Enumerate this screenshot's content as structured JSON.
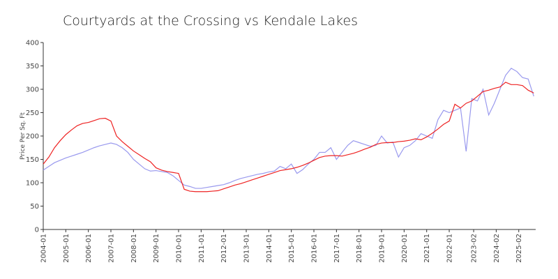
{
  "chart_data": {
    "type": "line",
    "title": "Courtyards at the Crossing vs Kendale Lakes",
    "y_label": "Price Per Sq. Ft",
    "x": [
      "2004-01",
      "2004-04",
      "2004-07",
      "2004-10",
      "2005-01",
      "2005-04",
      "2005-07",
      "2005-10",
      "2006-01",
      "2006-04",
      "2006-07",
      "2006-10",
      "2007-01",
      "2007-04",
      "2007-07",
      "2007-10",
      "2008-01",
      "2008-04",
      "2008-07",
      "2008-10",
      "2009-01",
      "2009-04",
      "2009-07",
      "2009-10",
      "2010-01",
      "2010-04",
      "2010-07",
      "2010-10",
      "2011-01",
      "2011-04",
      "2011-07",
      "2011-10",
      "2012-01",
      "2012-04",
      "2012-07",
      "2012-10",
      "2013-01",
      "2013-04",
      "2013-07",
      "2013-10",
      "2014-01",
      "2014-04",
      "2014-07",
      "2014-10",
      "2015-01",
      "2015-04",
      "2015-07",
      "2015-10",
      "2016-01",
      "2016-04",
      "2016-07",
      "2016-10",
      "2017-01",
      "2017-04",
      "2017-07",
      "2017-10",
      "2018-01",
      "2018-04",
      "2018-07",
      "2018-10",
      "2019-01",
      "2019-04",
      "2019-07",
      "2019-10",
      "2020-01",
      "2020-04",
      "2020-07",
      "2020-10",
      "2021-01",
      "2021-04",
      "2021-07",
      "2021-10",
      "2022-01",
      "2022-04",
      "2022-07",
      "2022-10",
      "2023-01",
      "2023-04",
      "2023-07",
      "2023-10",
      "2024-01",
      "2024-04",
      "2024-07",
      "2024-10",
      "2025-01",
      "2025-04",
      "2025-07",
      "2025-10"
    ],
    "series": [
      {
        "color": "#9999ee",
        "values": [
          127,
          135,
          143,
          148,
          153,
          157,
          161,
          165,
          170,
          175,
          179,
          182,
          185,
          182,
          175,
          165,
          150,
          140,
          130,
          125,
          126,
          124,
          122,
          115,
          105,
          95,
          92,
          88,
          88,
          90,
          92,
          94,
          96,
          100,
          105,
          109,
          112,
          115,
          118,
          120,
          123,
          125,
          135,
          130,
          140,
          120,
          128,
          140,
          150,
          165,
          165,
          175,
          150,
          165,
          180,
          190,
          186,
          182,
          178,
          180,
          200,
          185,
          187,
          155,
          175,
          180,
          190,
          205,
          200,
          195,
          235,
          255,
          250,
          255,
          260,
          167,
          280,
          275,
          300,
          245,
          270,
          300,
          330,
          345,
          338,
          325,
          322,
          285
        ]
      },
      {
        "color": "#ee2222",
        "values": [
          140,
          155,
          175,
          190,
          203,
          213,
          222,
          227,
          229,
          233,
          237,
          238,
          232,
          200,
          188,
          178,
          168,
          160,
          152,
          145,
          132,
          127,
          124,
          122,
          120,
          86,
          82,
          81,
          81,
          81,
          82,
          83,
          87,
          91,
          95,
          98,
          102,
          106,
          110,
          114,
          118,
          122,
          126,
          128,
          130,
          133,
          137,
          142,
          148,
          154,
          157,
          158,
          158,
          157,
          160,
          163,
          167,
          172,
          176,
          182,
          185,
          186,
          186,
          188,
          189,
          191,
          194,
          192,
          198,
          206,
          215,
          225,
          232,
          268,
          260,
          270,
          275,
          285,
          295,
          298,
          302,
          305,
          315,
          310,
          310,
          308,
          298,
          292
        ]
      }
    ],
    "xlim": [
      "2004-01",
      "2025-11"
    ],
    "xticks": [
      "2004-01",
      "2005-01",
      "2006-01",
      "2007-01",
      "2008-01",
      "2009-01",
      "2010-01",
      "2011-01",
      "2012-01",
      "2013-01",
      "2014-01",
      "2015-01",
      "2016-01",
      "2017-01",
      "2018-01",
      "2019-01",
      "2020-01",
      "2021-01",
      "2022-01",
      "2023-02",
      "2024-02",
      "2025-02"
    ],
    "ylim": [
      0,
      400
    ],
    "yticks": [
      0,
      50,
      100,
      150,
      200,
      250,
      300,
      350,
      400
    ]
  }
}
